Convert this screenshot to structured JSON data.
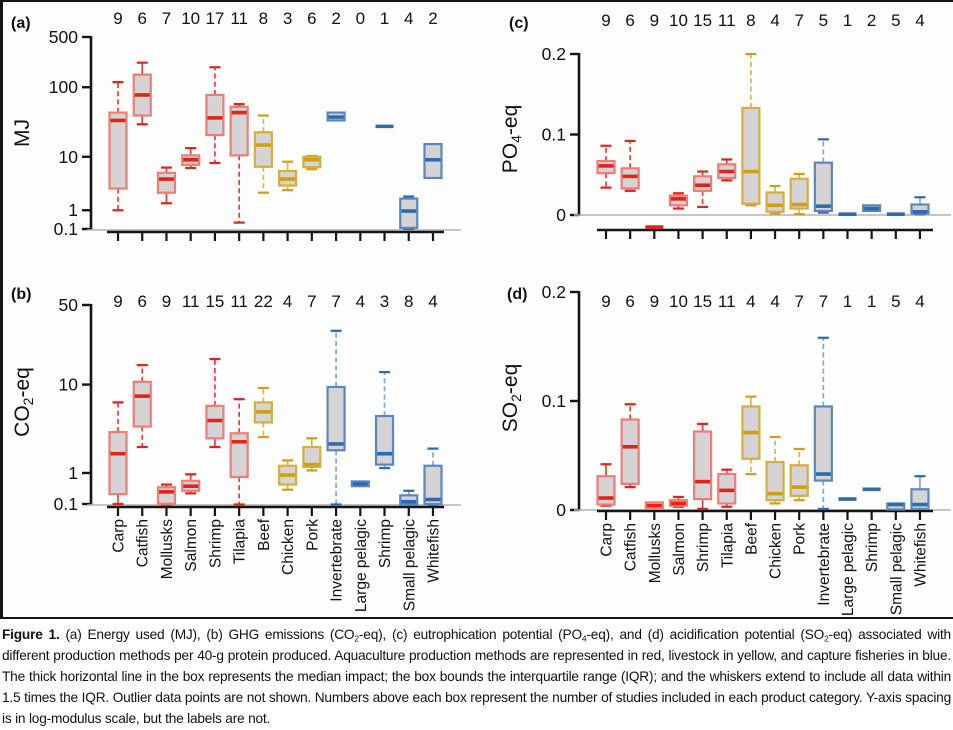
{
  "figure": {
    "caption_segments": [
      {
        "text": "Figure 1.",
        "bold": true
      },
      {
        "text": " (a) Energy used (MJ), (b) GHG emissions (CO"
      },
      {
        "text": "2",
        "sub": true
      },
      {
        "text": "-eq), (c) eutrophication potential (PO"
      },
      {
        "text": "4",
        "sub": true
      },
      {
        "text": "-eq), and (d) acidification potential (SO"
      },
      {
        "text": "2",
        "sub": true
      },
      {
        "text": "-eq) associated with different production methods per 40-g protein produced. Aquaculture production methods are represented in red, livestock in yellow, and capture fisheries in blue. The thick horizontal line in the box represents the median impact; the box bounds the interquartile range (IQR); and the whiskers extend to include all data within 1.5 times the IQR. Outlier data points are not shown. Numbers above each box represent the number of studies included in each product category. Y-axis spacing is in log-modulus scale, but the labels are not."
      }
    ]
  },
  "chart_data": {
    "type": "boxplot-grid",
    "categories": [
      "Carp",
      "Catfish",
      "Mollusks",
      "Salmon",
      "Shrimp",
      "Tilapia",
      "Beef",
      "Chicken",
      "Pork",
      "Invertebrate",
      "Large pelagic",
      "Shrimp",
      "Small pelagic",
      "Whitefish"
    ],
    "category_groups": [
      "aquaculture",
      "aquaculture",
      "aquaculture",
      "aquaculture",
      "aquaculture",
      "aquaculture",
      "livestock",
      "livestock",
      "livestock",
      "capture",
      "capture",
      "capture",
      "capture",
      "capture"
    ],
    "group_colors": {
      "aquaculture": {
        "edge": "#ef7d75",
        "median": "#e22418",
        "whisker": "#e84138"
      },
      "livestock": {
        "edge": "#d9ad3c",
        "median": "#cf9f16",
        "whisker": "#ddb54e"
      },
      "capture": {
        "edge": "#5b87bf",
        "median": "#2d6bad",
        "whisker": "#82a7d2"
      }
    },
    "box_fill": "#d5d3d3",
    "legend_note": "red = aquaculture, yellow = livestock, blue = capture fisheries",
    "panels": [
      {
        "id": "a",
        "letter": "(a)",
        "ylabel_parts": [
          {
            "t": "MJ"
          }
        ],
        "scale": "logmod",
        "yticks": [
          "500",
          "100",
          "10",
          "1",
          "0.1"
        ],
        "counts": [
          9,
          6,
          7,
          10,
          17,
          11,
          8,
          3,
          6,
          2,
          0,
          1,
          4,
          2
        ],
        "boxes": [
          {
            "lo": 1,
            "q1": 3,
            "med": 34,
            "q3": 44,
            "hi": 118
          },
          {
            "lo": 30,
            "q1": 40,
            "med": 78,
            "q3": 150,
            "hi": 220
          },
          {
            "lo": 1.5,
            "q1": 2.5,
            "med": 4.4,
            "q3": 5.6,
            "hi": 6.8
          },
          {
            "lo": 6.7,
            "q1": 7.5,
            "med": 9,
            "q3": 10.5,
            "hi": 13.5
          },
          {
            "lo": 8,
            "q1": 21,
            "med": 37,
            "q3": 78,
            "hi": 190
          },
          {
            "lo": 0.35,
            "q1": 10.5,
            "med": 44,
            "q3": 53,
            "hi": 58
          },
          {
            "lo": 2.5,
            "q1": 7,
            "med": 15,
            "q3": 23,
            "hi": 40
          },
          {
            "lo": 2.8,
            "q1": 3.4,
            "med": 4.4,
            "q3": 6,
            "hi": 8.4
          },
          {
            "lo": 6.4,
            "q1": 6.9,
            "med": 9,
            "q3": 10,
            "hi": 10.3
          },
          {
            "q1": 34,
            "med": 38,
            "q3": 44
          },
          null,
          {
            "med": 28
          },
          {
            "lo": 0.1,
            "q1": 0.14,
            "med": 0.95,
            "q3": 1.9,
            "hi": 2.1
          },
          {
            "q1": 4.6,
            "med": 9,
            "q3": 15.5
          }
        ]
      },
      {
        "id": "b",
        "letter": "(b)",
        "ylabel_parts": [
          {
            "t": "CO"
          },
          {
            "t": "2",
            "sub": true
          },
          {
            "t": "-eq"
          }
        ],
        "scale": "logmod",
        "yticks": [
          "50",
          "10",
          "1",
          "0.1"
        ],
        "counts": [
          9,
          6,
          9,
          11,
          15,
          11,
          22,
          4,
          7,
          7,
          4,
          3,
          8,
          4
        ],
        "boxes": [
          {
            "lo": 0.1,
            "q1": 0.33,
            "med": 1.9,
            "q3": 3.4,
            "hi": 6.8
          },
          {
            "lo": 2.3,
            "q1": 3.9,
            "med": 7.8,
            "q3": 10.6,
            "hi": 15
          },
          {
            "lo": 0.09,
            "q1": 0.105,
            "med": 0.39,
            "q3": 0.52,
            "hi": 0.6
          },
          {
            "lo": 0.35,
            "q1": 0.42,
            "med": 0.55,
            "q3": 0.72,
            "hi": 0.95
          },
          {
            "lo": 2.3,
            "q1": 2.9,
            "med": 4.5,
            "q3": 6.3,
            "hi": 17
          },
          {
            "lo": 0.09,
            "q1": 0.85,
            "med": 2.65,
            "q3": 3.3,
            "hi": 7.3
          },
          {
            "lo": 3,
            "q1": 4.3,
            "med": 5.5,
            "q3": 6.8,
            "hi": 9.3
          },
          {
            "lo": 0.45,
            "q1": 0.6,
            "med": 0.92,
            "q3": 1.3,
            "hi": 1.55
          },
          {
            "lo": 1.1,
            "q1": 1.25,
            "med": 1.35,
            "q3": 2.3,
            "hi": 2.9
          },
          {
            "lo": 0.09,
            "q1": 2.1,
            "med": 2.5,
            "q3": 9.5,
            "hi": 30
          },
          {
            "q1": 0.55,
            "med": 0.62,
            "q3": 0.7
          },
          {
            "lo": 1.2,
            "q1": 1.35,
            "med": 1.9,
            "q3": 5,
            "hi": 13
          },
          {
            "lo": 0.085,
            "q1": 0.09,
            "med": 0.15,
            "q3": 0.3,
            "hi": 0.42
          },
          {
            "lo": 0.085,
            "q1": 0.1,
            "med": 0.2,
            "q3": 1.3,
            "hi": 2.2
          }
        ]
      },
      {
        "id": "c",
        "letter": "(c)",
        "ylabel_parts": [
          {
            "t": "PO"
          },
          {
            "t": "4",
            "sub": true
          },
          {
            "t": "-eq"
          }
        ],
        "scale": "linear",
        "yticks": [
          "0.2",
          "0.1",
          "0"
        ],
        "counts": [
          9,
          6,
          9,
          10,
          15,
          11,
          8,
          4,
          7,
          5,
          1,
          2,
          5,
          4
        ],
        "boxes": [
          {
            "lo": 0.034,
            "q1": 0.052,
            "med": 0.061,
            "q3": 0.067,
            "hi": 0.086
          },
          {
            "lo": 0.03,
            "q1": 0.033,
            "med": 0.048,
            "q3": 0.058,
            "hi": 0.092
          },
          {
            "med": -0.015
          },
          {
            "lo": 0.008,
            "q1": 0.012,
            "med": 0.02,
            "q3": 0.024,
            "hi": 0.027
          },
          {
            "lo": 0.01,
            "q1": 0.03,
            "med": 0.037,
            "q3": 0.048,
            "hi": 0.054
          },
          {
            "lo": 0.043,
            "q1": 0.046,
            "med": 0.054,
            "q3": 0.063,
            "hi": 0.069
          },
          {
            "lo": 0.012,
            "q1": 0.014,
            "med": 0.054,
            "q3": 0.133,
            "hi": 0.2
          },
          {
            "lo": 0.002,
            "q1": 0.004,
            "med": 0.012,
            "q3": 0.028,
            "hi": 0.036
          },
          {
            "lo": 0.001,
            "q1": 0.008,
            "med": 0.013,
            "q3": 0.045,
            "hi": 0.051
          },
          {
            "lo": 0.003,
            "q1": 0.005,
            "med": 0.011,
            "q3": 0.065,
            "hi": 0.094
          },
          {
            "med": 0.001
          },
          {
            "q1": 0.005,
            "med": 0.008,
            "q3": 0.012
          },
          {
            "med": 0.001
          },
          {
            "lo": 0.001,
            "q1": 0.002,
            "med": 0.004,
            "q3": 0.013,
            "hi": 0.022
          }
        ]
      },
      {
        "id": "d",
        "letter": "(d)",
        "ylabel_parts": [
          {
            "t": "SO"
          },
          {
            "t": "2",
            "sub": true
          },
          {
            "t": "-eq"
          }
        ],
        "scale": "linear",
        "yticks": [
          "0.2",
          "0.1",
          "0"
        ],
        "counts": [
          9,
          6,
          9,
          10,
          15,
          11,
          4,
          4,
          7,
          7,
          1,
          1,
          5,
          4
        ],
        "boxes": [
          {
            "lo": 0.004,
            "q1": 0.005,
            "med": 0.011,
            "q3": 0.031,
            "hi": 0.042
          },
          {
            "lo": 0.021,
            "q1": 0.024,
            "med": 0.058,
            "q3": 0.083,
            "hi": 0.097
          },
          {
            "q1": 0.001,
            "med": 0.004,
            "q3": 0.007
          },
          {
            "lo": 0.003,
            "q1": 0.004,
            "med": 0.006,
            "q3": 0.009,
            "hi": 0.012
          },
          {
            "lo": 0.001,
            "q1": 0.01,
            "med": 0.026,
            "q3": 0.072,
            "hi": 0.079
          },
          {
            "lo": 0.003,
            "q1": 0.006,
            "med": 0.018,
            "q3": 0.033,
            "hi": 0.037
          },
          {
            "lo": 0.033,
            "q1": 0.047,
            "med": 0.071,
            "q3": 0.095,
            "hi": 0.104
          },
          {
            "lo": 0.006,
            "q1": 0.009,
            "med": 0.015,
            "q3": 0.044,
            "hi": 0.067
          },
          {
            "lo": 0.009,
            "q1": 0.013,
            "med": 0.021,
            "q3": 0.041,
            "hi": 0.056
          },
          {
            "lo": 0.001,
            "q1": 0.027,
            "med": 0.033,
            "q3": 0.095,
            "hi": 0.158
          },
          {
            "med": 0.01
          },
          {
            "med": 0.019
          },
          {
            "q1": 0.0005,
            "med": 0.005,
            "q3": 0.006
          },
          {
            "lo": 0.001,
            "q1": 0.001,
            "med": 0.005,
            "q3": 0.019,
            "hi": 0.031
          }
        ]
      }
    ]
  }
}
